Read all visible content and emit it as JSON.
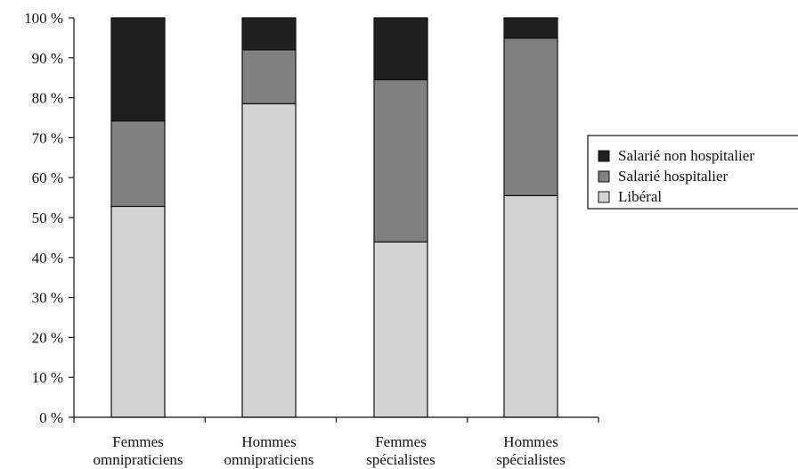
{
  "chart_data": {
    "type": "bar",
    "stacked": true,
    "percent_scale": true,
    "title": "",
    "xlabel": "",
    "ylabel": "",
    "ylim": [
      0,
      100
    ],
    "grid": false,
    "legend_position": "right",
    "y_ticks": [
      "0 %",
      "10 %",
      "20 %",
      "30 %",
      "40 %",
      "50 %",
      "60 %",
      "70 %",
      "80 %",
      "90 %",
      "100 %"
    ],
    "categories": [
      [
        "Femmes",
        "omnipraticiens"
      ],
      [
        "Hommes",
        "omnipraticiens"
      ],
      [
        "Femmes",
        "spécialistes"
      ],
      [
        "Hommes",
        "spécialistes"
      ]
    ],
    "series": [
      {
        "name": "Libéral",
        "color": "#d3d3d3",
        "values": [
          52.8,
          78.5,
          43.9,
          55.5
        ]
      },
      {
        "name": "Salarié hospitalier",
        "color": "#808080",
        "values": [
          21.4,
          13.5,
          40.6,
          39.4
        ]
      },
      {
        "name": "Salarié non hospitalier",
        "color": "#1f1f1f",
        "values": [
          25.8,
          8.0,
          15.5,
          5.1
        ]
      }
    ],
    "legend_order": [
      "Salarié non hospitalier",
      "Salarié hospitalier",
      "Libéral"
    ]
  }
}
